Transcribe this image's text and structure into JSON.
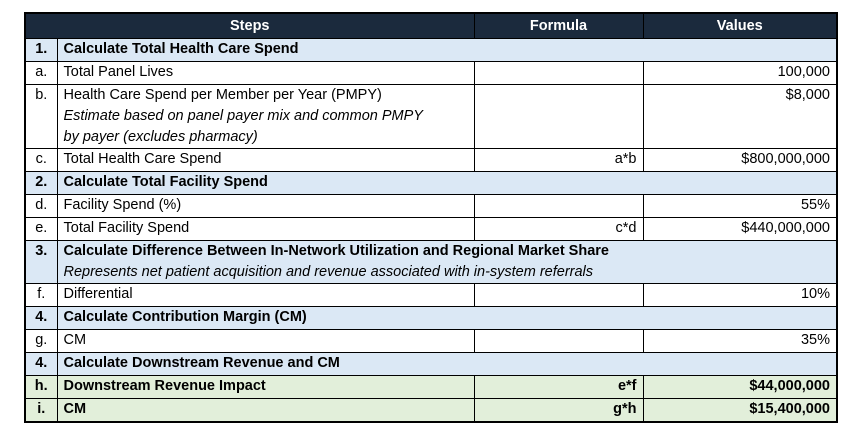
{
  "colors": {
    "header_bg": "#1b2a3d",
    "header_text": "#ffffff",
    "section_bg": "#dbe8f5",
    "result_bg": "#e2efda",
    "border": "#000000"
  },
  "table": {
    "header": {
      "steps": "Steps",
      "formula": "Formula",
      "values": "Values"
    },
    "rows": [
      {
        "kind": "section",
        "label": "1.",
        "title": "Calculate Total Health Care Spend"
      },
      {
        "kind": "item",
        "label": "a.",
        "steps": [
          {
            "text": "Total Panel Lives",
            "italic": false
          }
        ],
        "formula": "",
        "value": "100,000"
      },
      {
        "kind": "item",
        "label": "b.",
        "steps": [
          {
            "text": "Health Care Spend per Member per Year (PMPY)",
            "italic": false
          },
          {
            "text": "Estimate based on panel payer mix and common PMPY",
            "italic": true
          },
          {
            "text": "by payer (excludes pharmacy)",
            "italic": true
          }
        ],
        "formula": "",
        "value": "$8,000"
      },
      {
        "kind": "item",
        "label": "c.",
        "steps": [
          {
            "text": "Total Health Care Spend",
            "italic": false
          }
        ],
        "formula": "a*b",
        "value": "$800,000,000"
      },
      {
        "kind": "section",
        "label": "2.",
        "title": "Calculate Total Facility Spend"
      },
      {
        "kind": "item",
        "label": "d.",
        "steps": [
          {
            "text": "Facility Spend (%)",
            "italic": false
          }
        ],
        "formula": "",
        "value": "55%"
      },
      {
        "kind": "item",
        "label": "e.",
        "steps": [
          {
            "text": "Total Facility Spend",
            "italic": false
          }
        ],
        "formula": "c*d",
        "value": "$440,000,000"
      },
      {
        "kind": "section",
        "label": "3.",
        "title": "Calculate Difference Between In-Network Utilization and Regional Market Share",
        "subtitle": "Represents net patient acquisition and revenue associated with in-system referrals"
      },
      {
        "kind": "item",
        "label": "f.",
        "steps": [
          {
            "text": "Differential",
            "italic": false
          }
        ],
        "formula": "",
        "value": "10%"
      },
      {
        "kind": "section",
        "label": "4.",
        "title": "Calculate Contribution Margin (CM)"
      },
      {
        "kind": "item",
        "label": "g.",
        "steps": [
          {
            "text": "CM",
            "italic": false
          }
        ],
        "formula": "",
        "value": "35%"
      },
      {
        "kind": "section",
        "label": "4.",
        "title": "Calculate Downstream Revenue and CM"
      },
      {
        "kind": "result",
        "label": "h.",
        "steps": [
          {
            "text": "Downstream Revenue Impact",
            "italic": false
          }
        ],
        "formula": "e*f",
        "value": "$44,000,000"
      },
      {
        "kind": "result",
        "label": "i.",
        "steps": [
          {
            "text": "CM",
            "italic": false
          }
        ],
        "formula": "g*h",
        "value": "$15,400,000"
      }
    ]
  }
}
